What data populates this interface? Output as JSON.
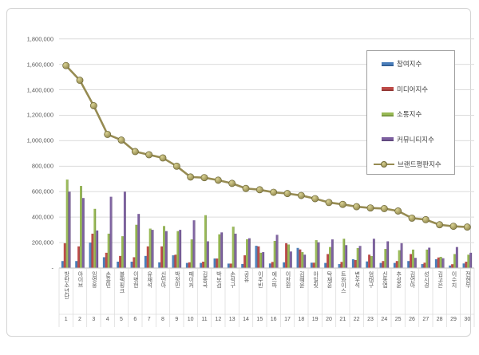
{
  "chart_data": {
    "type": "bar+line",
    "title": "",
    "categories": [
      "방탄소년단",
      "아이브",
      "임영웅",
      "손흥민",
      "블랙핑크",
      "이병헌",
      "유재석",
      "신민아",
      "박정민",
      "페이커",
      "김종국",
      "박보검",
      "손석구",
      "공유",
      "이주빈",
      "에스파",
      "이찬원",
      "김혜윤",
      "아일릿",
      "탁재훈",
      "트와이스",
      "변우석",
      "엄태구",
      "신동엽",
      "추성훈",
      "김연아",
      "성시경",
      "김고은",
      "이수지",
      "전현무"
    ],
    "ranks": [
      "1",
      "2",
      "3",
      "4",
      "5",
      "6",
      "7",
      "8",
      "9",
      "10",
      "11",
      "12",
      "13",
      "14",
      "15",
      "16",
      "17",
      "18",
      "19",
      "20",
      "21",
      "22",
      "23",
      "24",
      "25",
      "26",
      "27",
      "28",
      "29",
      "30"
    ],
    "series": [
      {
        "name": "참여지수",
        "color": "#4A7EBB",
        "side_color": "#2F5A8E",
        "values": [
          55000,
          55000,
          200000,
          85000,
          50000,
          50000,
          95000,
          45000,
          100000,
          40000,
          40000,
          75000,
          35000,
          32000,
          175000,
          36000,
          45000,
          158000,
          42000,
          40000,
          31000,
          69000,
          52000,
          40000,
          40000,
          55000,
          31000,
          69000,
          20000,
          36000
        ]
      },
      {
        "name": "미디어지수",
        "color": "#BE4B48",
        "side_color": "#8F3330",
        "values": [
          195000,
          170000,
          270000,
          120000,
          95000,
          85000,
          170000,
          170000,
          105000,
          45000,
          50000,
          75000,
          35000,
          100000,
          170000,
          48000,
          195000,
          146000,
          42000,
          110000,
          48000,
          63000,
          105000,
          55000,
          55000,
          110000,
          42000,
          83000,
          30000,
          50000
        ]
      },
      {
        "name": "소통지수",
        "color": "#98B954",
        "side_color": "#6E8C39",
        "values": [
          695000,
          645000,
          465000,
          270000,
          250000,
          340000,
          310000,
          330000,
          290000,
          225000,
          415000,
          265000,
          325000,
          226000,
          120000,
          213000,
          185000,
          125000,
          219000,
          165000,
          230000,
          157000,
          94000,
          150000,
          140000,
          145000,
          145000,
          88000,
          110000,
          105000
        ]
      },
      {
        "name": "커뮤니티지수",
        "color": "#7D60A0",
        "side_color": "#5A4377",
        "values": [
          600000,
          550000,
          295000,
          560000,
          600000,
          425000,
          300000,
          290000,
          300000,
          375000,
          210000,
          280000,
          270000,
          234000,
          125000,
          261000,
          130000,
          105000,
          202000,
          225000,
          180000,
          174000,
          230000,
          210000,
          195000,
          80000,
          160000,
          77000,
          165000,
          120000
        ]
      }
    ],
    "line_series": {
      "name": "브랜드평판지수",
      "color": "#968B52",
      "marker_light": "#D9D294",
      "marker_dark": "#8F854A",
      "marker_edge": "#6E6838",
      "values": [
        1590000,
        1475000,
        1275000,
        1050000,
        1005000,
        915000,
        890000,
        865000,
        800000,
        715000,
        710000,
        690000,
        665000,
        625000,
        615000,
        595000,
        585000,
        570000,
        545000,
        515000,
        500000,
        482000,
        472000,
        467000,
        448000,
        392000,
        380000,
        340000,
        328000,
        322000
      ]
    },
    "y_axis": {
      "min": 0,
      "max": 1800000,
      "step": 200000,
      "tick_labels": [
        "1,800,000",
        "1,600,000",
        "1,400,000",
        "1,200,000",
        "1,000,000",
        "800,000",
        "600,000",
        "400,000",
        "200,000",
        "-"
      ]
    },
    "grid": true,
    "legend_position": "top-right",
    "legend_labels": [
      "참여지수",
      "미디어지수",
      "소통지수",
      "커뮤니티지수",
      "브랜드평판지수"
    ]
  }
}
